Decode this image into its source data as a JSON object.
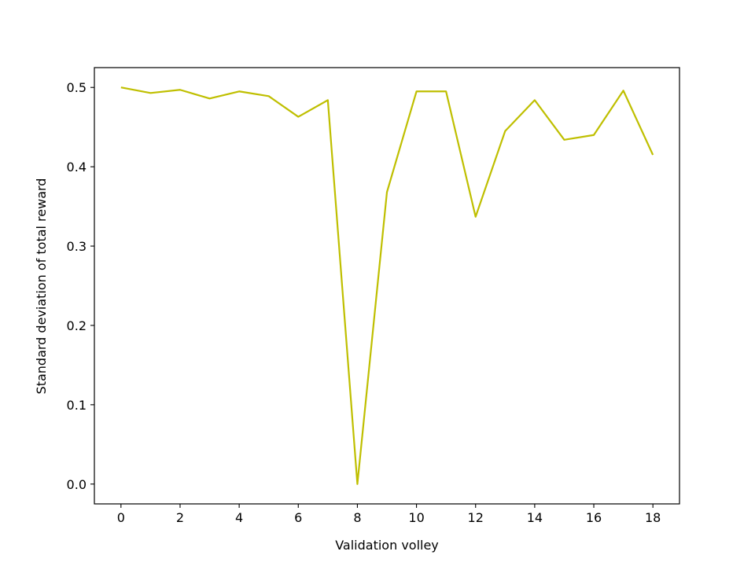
{
  "chart_data": {
    "type": "line",
    "title": "",
    "xlabel": "Validation volley",
    "ylabel": "Standard deviation of total reward",
    "xlim": [
      -0.9,
      18.9
    ],
    "ylim": [
      -0.025,
      0.525
    ],
    "xticks": [
      0,
      2,
      4,
      6,
      8,
      10,
      12,
      14,
      16,
      18
    ],
    "xtick_labels": [
      "0",
      "2",
      "4",
      "6",
      "8",
      "10",
      "12",
      "14",
      "16",
      "18"
    ],
    "yticks": [
      0.0,
      0.1,
      0.2,
      0.3,
      0.4,
      0.5
    ],
    "ytick_labels": [
      "0.0",
      "0.1",
      "0.2",
      "0.3",
      "0.4",
      "0.5"
    ],
    "grid": false,
    "legend": "none",
    "series": [
      {
        "color": "#bfbf00",
        "x": [
          0,
          1,
          2,
          3,
          4,
          5,
          6,
          7,
          8,
          9,
          10,
          11,
          12,
          13,
          14,
          15,
          16,
          17,
          18
        ],
        "y": [
          0.5,
          0.493,
          0.497,
          0.486,
          0.495,
          0.489,
          0.463,
          0.484,
          0.0,
          0.368,
          0.495,
          0.495,
          0.337,
          0.445,
          0.484,
          0.434,
          0.44,
          0.496,
          0.415
        ]
      }
    ]
  }
}
